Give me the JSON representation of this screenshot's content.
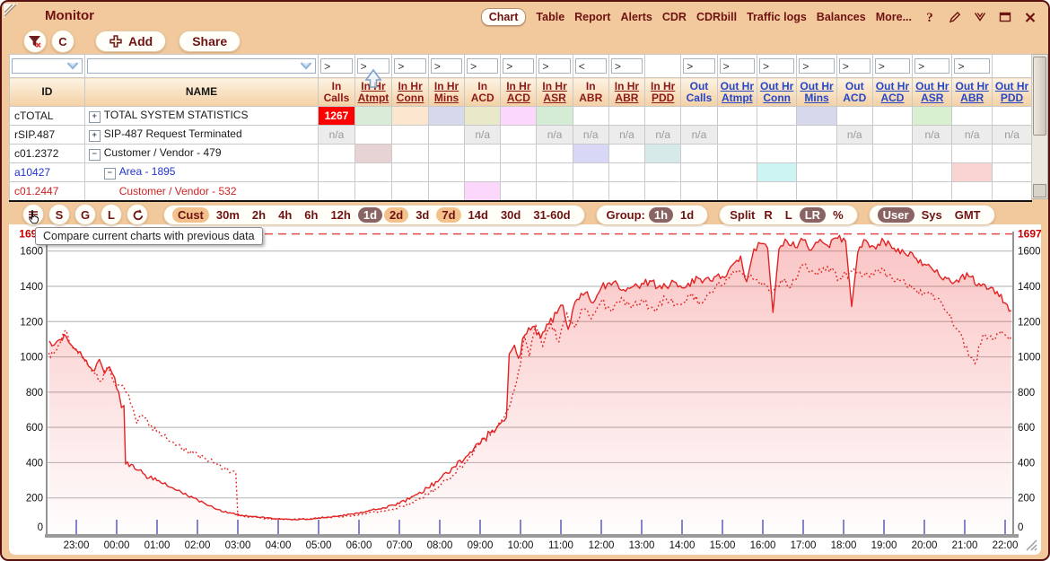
{
  "window": {
    "title": "Monitor"
  },
  "titlebar": {
    "nav_items": [
      "Chart",
      "Table",
      "Report",
      "Alerts",
      "CDR",
      "CDRbill",
      "Traffic logs",
      "Balances",
      "More..."
    ],
    "selected": "Chart",
    "icons": [
      "help",
      "edit",
      "collapse",
      "window",
      "close"
    ]
  },
  "toolbar": {
    "clear_label": "C",
    "add_label": "Add",
    "share_label": "Share"
  },
  "tooltip": {
    "text": "Compare current charts with previous data"
  },
  "table": {
    "id_header": "ID",
    "name_header": "NAME",
    "na_label": "n/a",
    "columns": [
      {
        "l1": "In",
        "l2": "Calls",
        "grp": "in",
        "link": false,
        "op": ">"
      },
      {
        "l1": "In Hr",
        "l2": "Atmpt",
        "grp": "in",
        "link": true,
        "op": ">"
      },
      {
        "l1": "In Hr",
        "l2": "Conn",
        "grp": "in",
        "link": true,
        "op": ">"
      },
      {
        "l1": "In Hr",
        "l2": "Mins",
        "grp": "in",
        "link": true,
        "op": ">"
      },
      {
        "l1": "In",
        "l2": "ACD",
        "grp": "in",
        "link": false,
        "op": ">"
      },
      {
        "l1": "In Hr",
        "l2": "ACD",
        "grp": "in",
        "link": true,
        "op": ">"
      },
      {
        "l1": "In Hr",
        "l2": "ASR",
        "grp": "in",
        "link": true,
        "op": ">"
      },
      {
        "l1": "In",
        "l2": "ABR",
        "grp": "in",
        "link": false,
        "op": "<"
      },
      {
        "l1": "In Hr",
        "l2": "ABR",
        "grp": "in",
        "link": true,
        "op": ">"
      },
      {
        "l1": "In Hr",
        "l2": "PDD",
        "grp": "in",
        "link": true,
        "op": ""
      },
      {
        "l1": "Out",
        "l2": "Calls",
        "grp": "out",
        "link": false,
        "op": ">"
      },
      {
        "l1": "Out Hr",
        "l2": "Atmpt",
        "grp": "out",
        "link": true,
        "op": ">"
      },
      {
        "l1": "Out Hr",
        "l2": "Conn",
        "grp": "out",
        "link": true,
        "op": ">"
      },
      {
        "l1": "Out Hr",
        "l2": "Mins",
        "grp": "out",
        "link": true,
        "op": ">"
      },
      {
        "l1": "Out",
        "l2": "ACD",
        "grp": "out",
        "link": false,
        "op": ">"
      },
      {
        "l1": "Out Hr",
        "l2": "ACD",
        "grp": "out",
        "link": true,
        "op": ">"
      },
      {
        "l1": "Out Hr",
        "l2": "ASR",
        "grp": "out",
        "link": true,
        "op": ">"
      },
      {
        "l1": "Out Hr",
        "l2": "ABR",
        "grp": "out",
        "link": true,
        "op": ">"
      },
      {
        "l1": "Out Hr",
        "l2": "PDD",
        "grp": "out",
        "link": true,
        "op": ""
      }
    ],
    "rows": [
      {
        "id": "cTOTAL",
        "name": "TOTAL SYSTEM STATISTICS",
        "expand": "plus",
        "indent": 0,
        "color": "#1a1a1a",
        "values": {
          "1": {
            "text": "1267",
            "bg": "#ff0000",
            "color": "#ffffff",
            "bold": true
          }
        },
        "tints": {
          "2": "#d8ecd8",
          "3": "#fbe7d0",
          "4": "#d8d8ec",
          "5": "#e9e9c9",
          "6": "#fbd7fb",
          "7": "#d3ecd3",
          "14": "#d8d8ec",
          "17": "#d8f0d0"
        },
        "na": []
      },
      {
        "id": "rSIP.487",
        "name": "SIP-487 Request Terminated",
        "expand": "plus",
        "indent": 0,
        "color": "#1a1a1a",
        "values": {},
        "tints": {},
        "na": [
          1,
          5,
          7,
          8,
          9,
          10,
          11,
          15,
          17,
          18,
          19
        ]
      },
      {
        "id": "c01.2372",
        "name": "Customer / Vendor - 479",
        "expand": "minus",
        "indent": 0,
        "color": "#1a1a1a",
        "values": {},
        "tints": {
          "2": "#e7d3d3",
          "8": "#d8d8f6",
          "10": "#d6ebe9"
        },
        "na": []
      },
      {
        "id": "a10427",
        "name": "Area - 1895",
        "expand": "minus",
        "indent": 1,
        "color": "#2233cc",
        "values": {},
        "tints": {
          "13": "#cdf3f3",
          "18": "#fad3d3"
        },
        "na": []
      },
      {
        "id": "c01.2447",
        "name": "Customer / Vendor - 532",
        "expand": "none",
        "indent": 2,
        "color": "#cc2222",
        "values": {},
        "tints": {
          "5": "#fbd7fb"
        },
        "na": []
      }
    ]
  },
  "controls": {
    "round_buttons": [
      {
        "icon": "compare",
        "label": ""
      },
      {
        "icon": "",
        "label": "S"
      },
      {
        "icon": "",
        "label": "G"
      },
      {
        "icon": "",
        "label": "L"
      },
      {
        "icon": "refresh",
        "label": ""
      }
    ],
    "periods": [
      {
        "l": "Cust",
        "s": "hl"
      },
      {
        "l": "30m",
        "s": ""
      },
      {
        "l": "2h",
        "s": ""
      },
      {
        "l": "4h",
        "s": ""
      },
      {
        "l": "6h",
        "s": ""
      },
      {
        "l": "12h",
        "s": ""
      },
      {
        "l": "1d",
        "s": "sel"
      },
      {
        "l": "2d",
        "s": "hl"
      },
      {
        "l": "3d",
        "s": ""
      },
      {
        "l": "7d",
        "s": "hl"
      },
      {
        "l": "14d",
        "s": ""
      },
      {
        "l": "30d",
        "s": ""
      },
      {
        "l": "31-60d",
        "s": ""
      }
    ],
    "group_label": "Group:",
    "group_items": [
      {
        "l": "1h",
        "s": "sel"
      },
      {
        "l": "1d",
        "s": ""
      }
    ],
    "split_label": "Split",
    "split_items": [
      {
        "l": "R",
        "s": ""
      },
      {
        "l": "L",
        "s": ""
      },
      {
        "l": "LR",
        "s": "sel"
      },
      {
        "l": "%",
        "s": ""
      }
    ],
    "tz_items": [
      {
        "l": "User",
        "s": "sel"
      },
      {
        "l": "Sys",
        "s": ""
      },
      {
        "l": "GMT",
        "s": ""
      }
    ]
  },
  "chart_data": {
    "type": "line",
    "title": "",
    "y_max": 1697,
    "max_label": "1697",
    "y_ticks": [
      0,
      200,
      400,
      600,
      800,
      1000,
      1200,
      1400,
      1600
    ],
    "x_tick_labels": [
      "23:00",
      "00:00",
      "01:00",
      "02:00",
      "03:00",
      "04:00",
      "05:00",
      "06:00",
      "07:00",
      "08:00",
      "09:00",
      "10:00",
      "11:00",
      "12:00",
      "13:00",
      "14:00",
      "15:00",
      "16:00",
      "17:00",
      "18:00",
      "19:00",
      "20:00",
      "21:00",
      "22:00"
    ],
    "t_unit": "hours since 22:00",
    "line_color": "#e32222",
    "max_line_color": "#e04b4b",
    "grid_color": "#bdbdbd",
    "tick_color": "#8484cc",
    "legend_position": "none",
    "series": [
      {
        "name": "current",
        "style": "solid",
        "points": [
          [
            0.27,
            1105
          ],
          [
            0.4,
            1062
          ],
          [
            0.52,
            1088
          ],
          [
            0.65,
            1094
          ],
          [
            0.75,
            1116
          ],
          [
            0.88,
            1066
          ],
          [
            1.0,
            1038
          ],
          [
            1.15,
            996
          ],
          [
            1.3,
            948
          ],
          [
            1.45,
            922
          ],
          [
            1.57,
            986
          ],
          [
            1.7,
            906
          ],
          [
            1.82,
            944
          ],
          [
            1.95,
            882
          ],
          [
            2.05,
            802
          ],
          [
            2.12,
            712
          ],
          [
            2.18,
            724
          ],
          [
            2.22,
            392
          ],
          [
            2.45,
            364
          ],
          [
            2.7,
            332
          ],
          [
            3.0,
            298
          ],
          [
            3.3,
            262
          ],
          [
            3.6,
            232
          ],
          [
            3.9,
            200
          ],
          [
            4.2,
            166
          ],
          [
            4.5,
            134
          ],
          [
            4.8,
            116
          ],
          [
            5.1,
            102
          ],
          [
            5.5,
            90
          ],
          [
            6.0,
            82
          ],
          [
            6.5,
            77
          ],
          [
            7.0,
            86
          ],
          [
            7.5,
            98
          ],
          [
            8.0,
            112
          ],
          [
            8.5,
            138
          ],
          [
            9.0,
            168
          ],
          [
            9.35,
            210
          ],
          [
            9.7,
            256
          ],
          [
            10.0,
            306
          ],
          [
            10.35,
            376
          ],
          [
            10.7,
            442
          ],
          [
            11.0,
            506
          ],
          [
            11.25,
            566
          ],
          [
            11.5,
            622
          ],
          [
            11.65,
            656
          ],
          [
            11.72,
            1016
          ],
          [
            11.85,
            1066
          ],
          [
            11.95,
            992
          ],
          [
            12.1,
            1122
          ],
          [
            12.3,
            1172
          ],
          [
            12.5,
            1106
          ],
          [
            12.7,
            1186
          ],
          [
            12.9,
            1246
          ],
          [
            13.05,
            1292
          ],
          [
            13.18,
            1156
          ],
          [
            13.35,
            1312
          ],
          [
            13.6,
            1362
          ],
          [
            13.8,
            1306
          ],
          [
            14.0,
            1392
          ],
          [
            14.3,
            1422
          ],
          [
            14.6,
            1372
          ],
          [
            14.9,
            1402
          ],
          [
            15.2,
            1432
          ],
          [
            15.5,
            1386
          ],
          [
            15.8,
            1426
          ],
          [
            16.1,
            1396
          ],
          [
            16.4,
            1446
          ],
          [
            16.7,
            1432
          ],
          [
            17.0,
            1456
          ],
          [
            17.25,
            1522
          ],
          [
            17.45,
            1572
          ],
          [
            17.6,
            1426
          ],
          [
            17.78,
            1612
          ],
          [
            17.95,
            1642
          ],
          [
            18.12,
            1616
          ],
          [
            18.25,
            1252
          ],
          [
            18.4,
            1612
          ],
          [
            18.6,
            1656
          ],
          [
            18.8,
            1622
          ],
          [
            19.0,
            1662
          ],
          [
            19.2,
            1606
          ],
          [
            19.42,
            1666
          ],
          [
            19.6,
            1632
          ],
          [
            19.85,
            1672
          ],
          [
            20.05,
            1656
          ],
          [
            20.2,
            1286
          ],
          [
            20.35,
            1592
          ],
          [
            20.55,
            1662
          ],
          [
            20.75,
            1626
          ],
          [
            21.0,
            1656
          ],
          [
            21.25,
            1616
          ],
          [
            21.5,
            1592
          ],
          [
            21.75,
            1566
          ],
          [
            22.0,
            1526
          ],
          [
            22.2,
            1496
          ],
          [
            22.42,
            1446
          ],
          [
            22.65,
            1426
          ],
          [
            22.9,
            1452
          ],
          [
            23.1,
            1456
          ],
          [
            23.35,
            1416
          ],
          [
            23.6,
            1386
          ],
          [
            23.85,
            1342
          ],
          [
            24.05,
            1296
          ],
          [
            24.15,
            1262
          ]
        ]
      },
      {
        "name": "previous",
        "style": "dotted",
        "points": [
          [
            0.27,
            996
          ],
          [
            0.45,
            1022
          ],
          [
            0.6,
            1076
          ],
          [
            0.73,
            1152
          ],
          [
            0.88,
            1062
          ],
          [
            1.05,
            1016
          ],
          [
            1.25,
            962
          ],
          [
            1.45,
            906
          ],
          [
            1.6,
            862
          ],
          [
            1.75,
            936
          ],
          [
            1.9,
            872
          ],
          [
            2.05,
            842
          ],
          [
            2.25,
            792
          ],
          [
            2.4,
            712
          ],
          [
            2.5,
            622
          ],
          [
            2.62,
            672
          ],
          [
            2.8,
            612
          ],
          [
            3.0,
            572
          ],
          [
            3.3,
            522
          ],
          [
            3.6,
            482
          ],
          [
            3.9,
            456
          ],
          [
            4.2,
            422
          ],
          [
            4.5,
            392
          ],
          [
            4.75,
            362
          ],
          [
            4.95,
            338
          ],
          [
            5.0,
            100
          ],
          [
            5.3,
            92
          ],
          [
            5.7,
            84
          ],
          [
            6.2,
            78
          ],
          [
            6.7,
            80
          ],
          [
            7.2,
            88
          ],
          [
            7.7,
            98
          ],
          [
            8.2,
            112
          ],
          [
            8.7,
            128
          ],
          [
            9.1,
            152
          ],
          [
            9.5,
            196
          ],
          [
            9.9,
            252
          ],
          [
            10.3,
            326
          ],
          [
            10.7,
            416
          ],
          [
            11.0,
            502
          ],
          [
            11.3,
            576
          ],
          [
            11.55,
            646
          ],
          [
            11.75,
            732
          ],
          [
            11.9,
            856
          ],
          [
            12.0,
            956
          ],
          [
            12.1,
            1116
          ],
          [
            12.22,
            1002
          ],
          [
            12.38,
            1176
          ],
          [
            12.55,
            1062
          ],
          [
            12.75,
            1196
          ],
          [
            12.95,
            1086
          ],
          [
            13.15,
            1246
          ],
          [
            13.35,
            1166
          ],
          [
            13.55,
            1276
          ],
          [
            13.75,
            1216
          ],
          [
            14.0,
            1316
          ],
          [
            14.25,
            1256
          ],
          [
            14.5,
            1336
          ],
          [
            14.75,
            1276
          ],
          [
            15.0,
            1326
          ],
          [
            15.3,
            1268
          ],
          [
            15.6,
            1332
          ],
          [
            15.9,
            1296
          ],
          [
            16.2,
            1346
          ],
          [
            16.5,
            1306
          ],
          [
            16.8,
            1382
          ],
          [
            17.1,
            1442
          ],
          [
            17.4,
            1492
          ],
          [
            17.7,
            1466
          ],
          [
            18.0,
            1422
          ],
          [
            18.2,
            1362
          ],
          [
            18.45,
            1436
          ],
          [
            18.7,
            1396
          ],
          [
            19.0,
            1522
          ],
          [
            19.3,
            1472
          ],
          [
            19.6,
            1512
          ],
          [
            19.9,
            1446
          ],
          [
            20.2,
            1486
          ],
          [
            20.5,
            1456
          ],
          [
            20.8,
            1496
          ],
          [
            21.1,
            1466
          ],
          [
            21.4,
            1432
          ],
          [
            21.7,
            1386
          ],
          [
            22.0,
            1362
          ],
          [
            22.3,
            1332
          ],
          [
            22.6,
            1236
          ],
          [
            22.85,
            1146
          ],
          [
            23.1,
            1006
          ],
          [
            23.25,
            962
          ],
          [
            23.45,
            1122
          ],
          [
            23.7,
            1096
          ],
          [
            23.95,
            1132
          ],
          [
            24.15,
            1112
          ]
        ]
      }
    ]
  }
}
